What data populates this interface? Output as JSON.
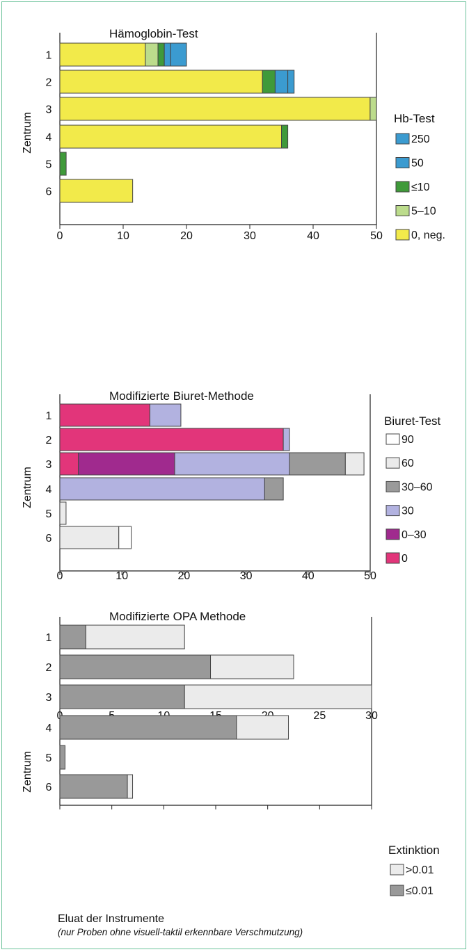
{
  "chart_data": [
    {
      "type": "bar",
      "stacked": true,
      "orientation": "horizontal",
      "title": "Hämoglobin-Test",
      "ylabel": "Zentrum",
      "categories": [
        "1",
        "2",
        "3",
        "4",
        "5",
        "6"
      ],
      "xlim": [
        0,
        50
      ],
      "xticks": [
        0,
        10,
        20,
        30,
        40,
        50
      ],
      "legend_title": "Hb-Test",
      "legend_position": "right",
      "legend_order": [
        "250",
        "50",
        "≤10",
        "5–10",
        "0, neg."
      ],
      "series": [
        {
          "name": "0, neg.",
          "color": "#f2ea4a",
          "values": [
            13.5,
            32,
            49,
            35,
            0,
            11.5
          ]
        },
        {
          "name": "5–10",
          "color": "#bcdc8c",
          "values": [
            2,
            0,
            1,
            0,
            0,
            0
          ]
        },
        {
          "name": "≤10",
          "color": "#3f9a3a",
          "values": [
            1,
            2,
            0,
            1,
            1,
            0
          ]
        },
        {
          "name": "50",
          "color": "#3b9bd0",
          "values": [
            1,
            2,
            0,
            0,
            0,
            0
          ]
        },
        {
          "name": "250",
          "color": "#3b9bd0",
          "values": [
            2.5,
            1,
            0,
            0,
            0,
            0
          ]
        }
      ]
    },
    {
      "type": "bar",
      "stacked": true,
      "orientation": "horizontal",
      "title": "Modifizierte Biuret-Methode",
      "ylabel": "Zentrum",
      "categories": [
        "1",
        "2",
        "3",
        "4",
        "5",
        "6"
      ],
      "xlim": [
        0,
        50
      ],
      "xticks": [
        0,
        10,
        20,
        30,
        40,
        50
      ],
      "legend_title": "Biuret-Test",
      "legend_position": "right",
      "legend_order": [
        "90",
        "60",
        "30–60",
        "30",
        "0–30",
        "0"
      ],
      "series": [
        {
          "name": "0",
          "color": "#e2357a",
          "values": [
            14.5,
            36,
            3,
            0,
            0,
            0
          ]
        },
        {
          "name": "0–30",
          "color": "#a02a8e",
          "values": [
            0,
            0,
            15.5,
            0,
            0,
            0
          ]
        },
        {
          "name": "30",
          "color": "#b2b2e0",
          "values": [
            5,
            1,
            18.5,
            33,
            0,
            0
          ]
        },
        {
          "name": "30–60",
          "color": "#9a9a9a",
          "values": [
            0,
            0,
            9,
            3,
            0,
            0
          ]
        },
        {
          "name": "60",
          "color": "#ebebeb",
          "values": [
            0,
            0,
            3,
            0,
            1,
            9.5
          ]
        },
        {
          "name": "90",
          "color": "#ffffff",
          "values": [
            0,
            0,
            0,
            0,
            0,
            2
          ]
        }
      ]
    },
    {
      "type": "bar",
      "stacked": true,
      "orientation": "horizontal",
      "title": "Modifizierte OPA Methode",
      "ylabel": "Zentrum",
      "categories": [
        "1",
        "2",
        "3",
        "4",
        "5",
        "6"
      ],
      "xlim": [
        0,
        30
      ],
      "xticks": [
        0,
        5,
        10,
        15,
        20,
        25,
        30
      ],
      "legend_title": "Extinktion",
      "legend_position": "right",
      "legend_order": [
        ">0.01",
        "≤0.01"
      ],
      "series": [
        {
          "name": "≤0.01",
          "color": "#999999",
          "values": [
            2.5,
            14.5,
            12,
            17,
            0.5,
            6.5
          ]
        },
        {
          "name": ">0.01",
          "color": "#ebebeb",
          "values": [
            9.5,
            8,
            18,
            5,
            0,
            0.5
          ]
        }
      ]
    }
  ],
  "footer": {
    "caption": "Eluat der Instrumente",
    "note": "(nur Proben ohne visuell-taktil erkennbare Verschmutzung)"
  }
}
